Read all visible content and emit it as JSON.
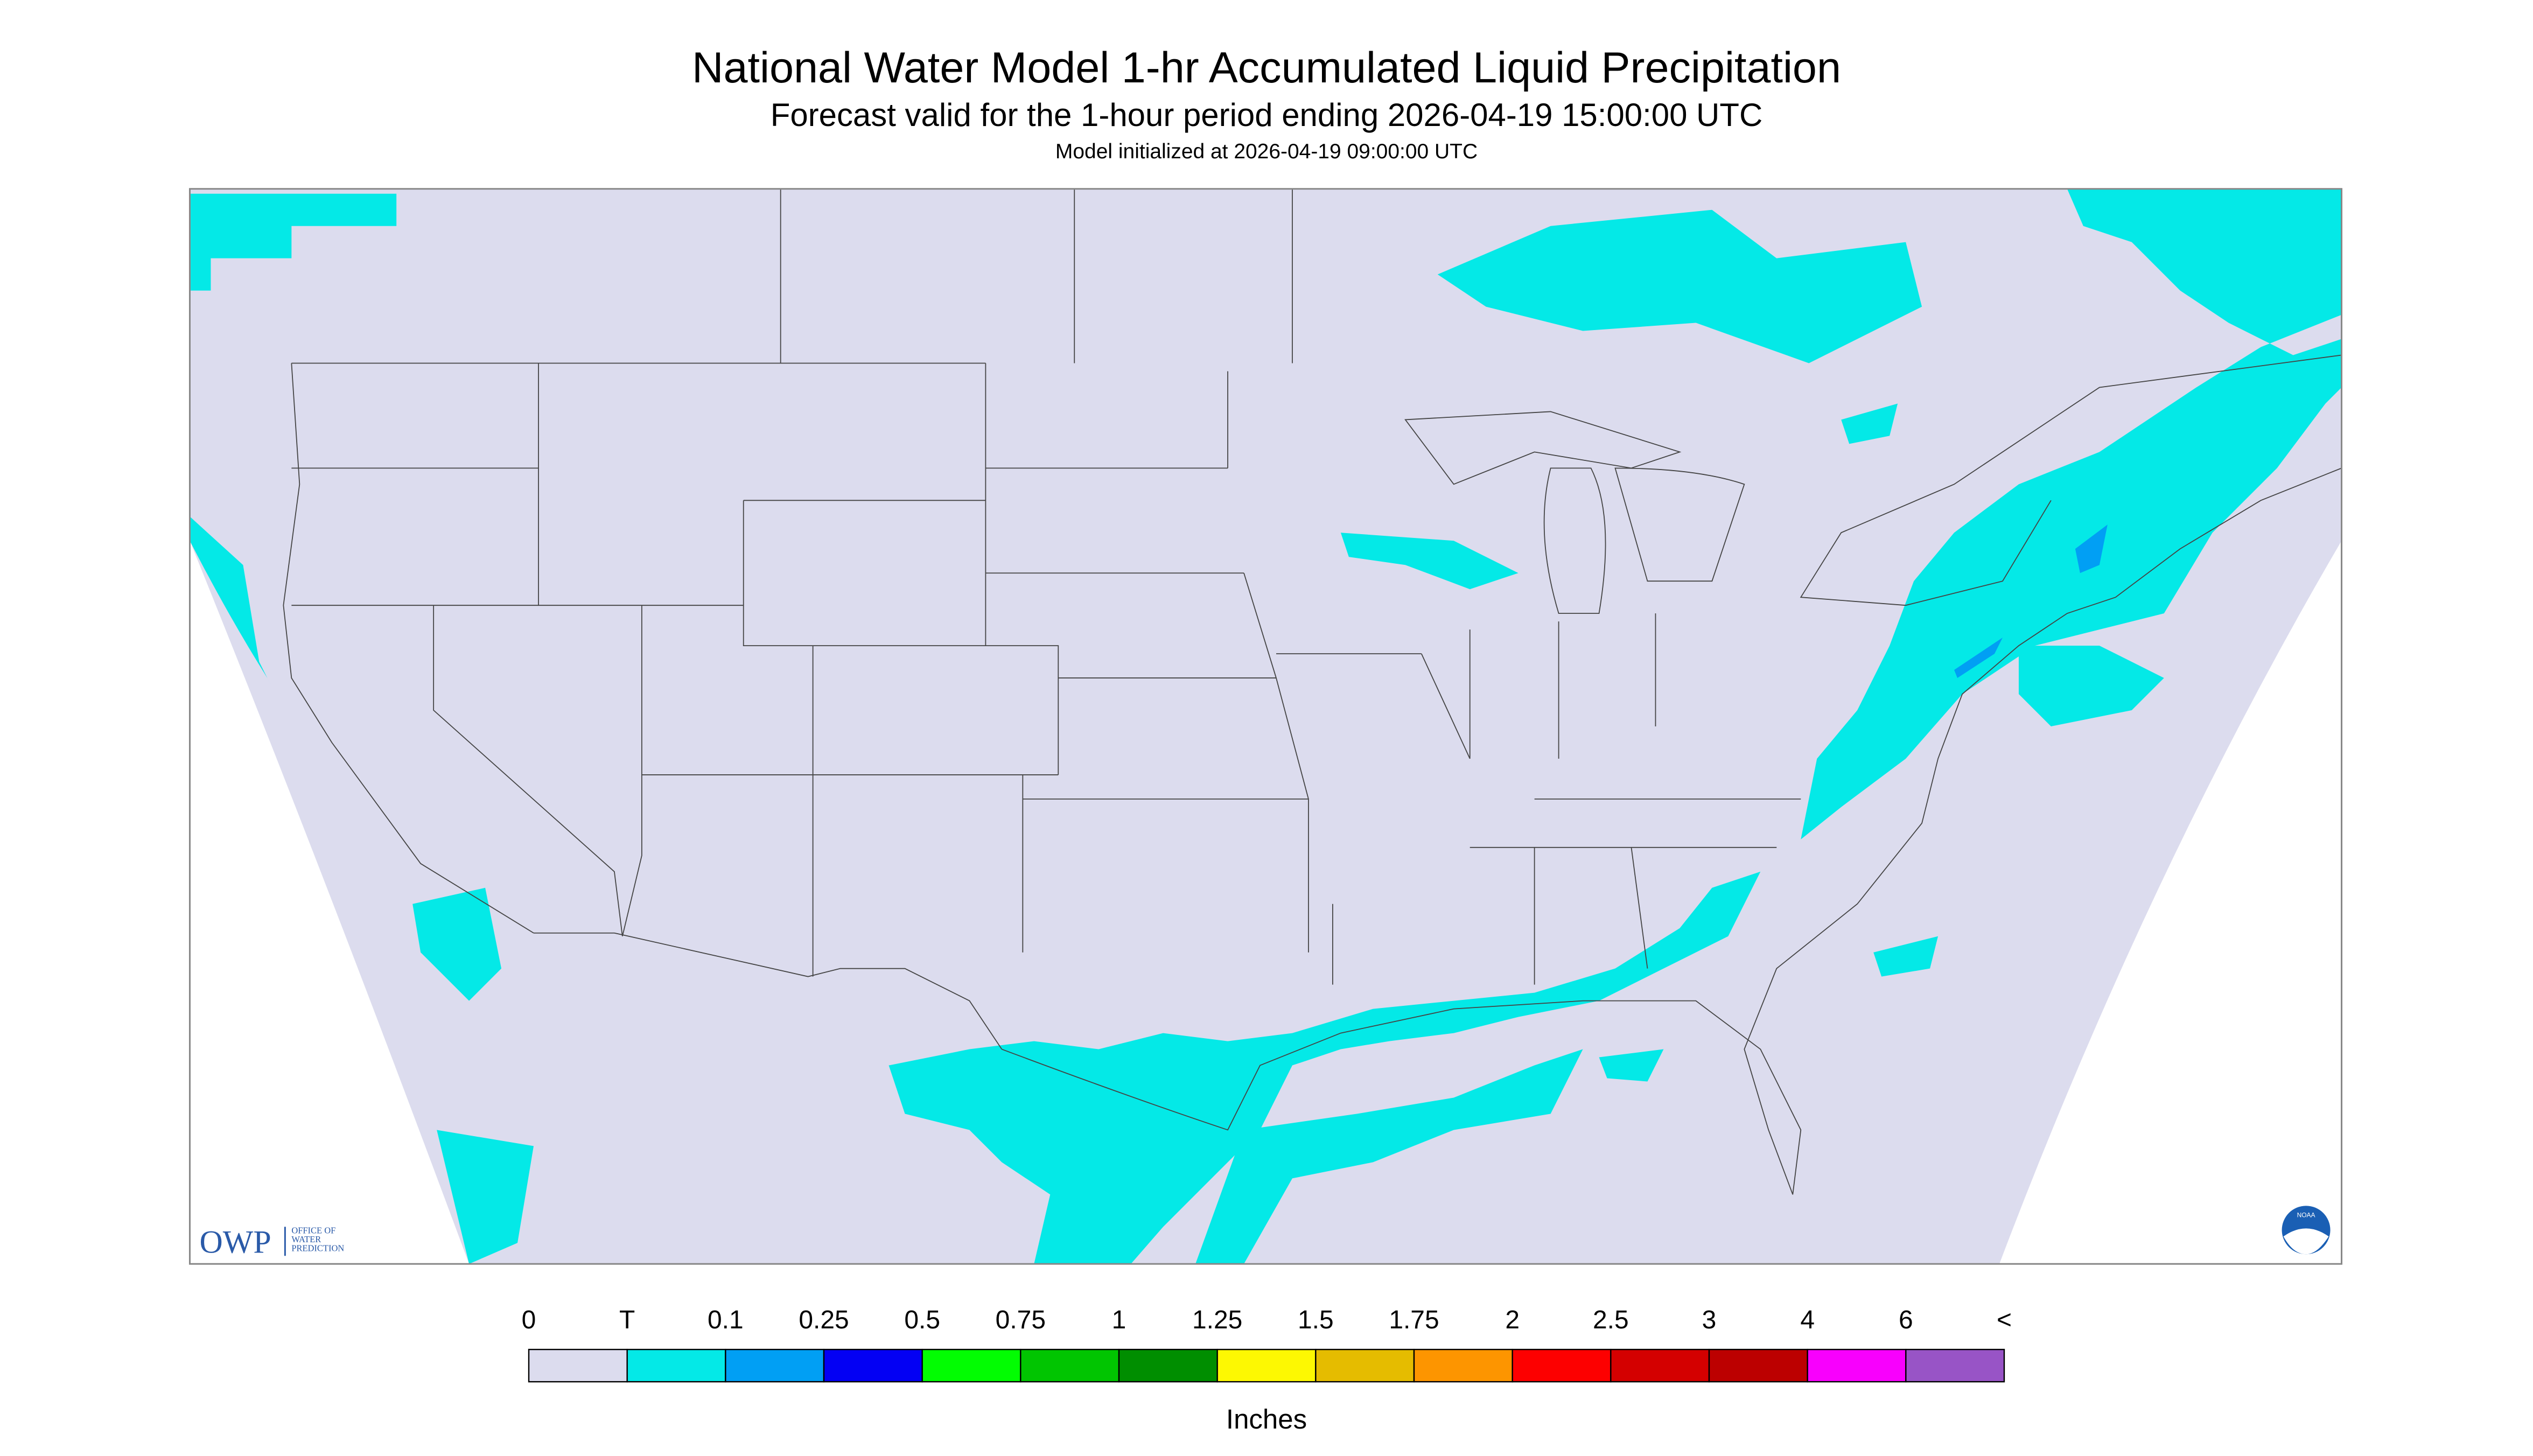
{
  "header": {
    "title": "National Water Model 1-hr Accumulated Liquid Precipitation",
    "subtitle": "Forecast valid for the 1-hour period ending 2026-04-19 15:00:00 UTC",
    "init": "Model initialized at 2026-04-19 09:00:00 UTC"
  },
  "logos": {
    "owp": "OWP",
    "owp_name": [
      "OFFICE OF",
      "WATER",
      "PREDICTION"
    ],
    "noaa": "NOAA"
  },
  "legend": {
    "labels": [
      "0",
      "T",
      "0.1",
      "0.25",
      "0.5",
      "0.75",
      "1",
      "1.25",
      "1.5",
      "1.75",
      "2",
      "2.5",
      "3",
      "4",
      "6",
      "<"
    ],
    "colors": [
      "#dcdcee",
      "#04e9e7",
      "#019ff4",
      "#0300f4",
      "#02fd02",
      "#01c501",
      "#008e00",
      "#fdf802",
      "#e5bc00",
      "#fd9500",
      "#fd0000",
      "#d40000",
      "#bc0000",
      "#f800fd",
      "#9854c6"
    ],
    "unit": "Inches"
  }
}
